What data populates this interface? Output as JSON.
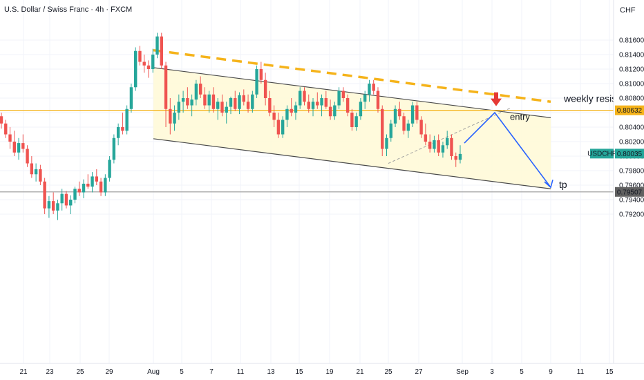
{
  "header": {
    "title": "U.S. Dollar / Swiss Franc · 4h · FXCM",
    "currency": "CHF"
  },
  "colors": {
    "up": "#26a69a",
    "down": "#ef5350",
    "channel_fill": "#fff9d6",
    "trendline": "#f5b31a",
    "resistance": "#f5b31a",
    "tp_line": "#9e9e9e",
    "projection": "#2962ff",
    "arrow": "#e53935",
    "price_tag": "#26a69a"
  },
  "annotations": {
    "resistance_label": "weekly resist",
    "entry_label": "entry",
    "tp_label": "tp"
  },
  "price_tags": {
    "resistance": "0.80632",
    "current_symbol": "USDCHF",
    "current": "0.80035",
    "tp": "0.79507"
  },
  "chart_data": {
    "type": "candlestick",
    "symbol": "USDCHF",
    "timeframe": "4h",
    "ylim": [
      0.791,
      0.8175
    ],
    "y_ticks": [
      0.816,
      0.814,
      0.812,
      0.81,
      0.808,
      0.806,
      0.804,
      0.802,
      0.8,
      0.798,
      0.796,
      0.794,
      0.792
    ],
    "x_ticks": [
      "21",
      "23",
      "25",
      "29",
      "Aug",
      "5",
      "7",
      "11",
      "13",
      "15",
      "19",
      "21",
      "25",
      "27",
      "Sep",
      "3",
      "5",
      "9",
      "11",
      "15"
    ],
    "levels": {
      "weekly_resistance": 0.80632,
      "take_profit": 0.79507,
      "last_price": 0.80035
    },
    "channel": {
      "upper": [
        [
          "Aug 1",
          0.8122
        ],
        [
          "Sep 9",
          0.8053
        ]
      ],
      "lower": [
        [
          "Aug 1",
          0.8024
        ],
        [
          "Sep 9",
          0.7955
        ]
      ]
    },
    "trendline": [
      [
        "Aug 1",
        0.8146
      ],
      [
        "Sep 9",
        0.8075
      ]
    ],
    "projection": [
      [
        "Aug 29",
        0.8018
      ],
      [
        "Sep 3",
        0.806
      ],
      [
        "Sep 9",
        0.7957
      ]
    ],
    "series": [
      {
        "ohlc": [
          [
            0.8055,
            0.806,
            0.8038,
            0.8045
          ],
          [
            0.8045,
            0.805,
            0.8025,
            0.803
          ],
          [
            0.803,
            0.804,
            0.801,
            0.802
          ],
          [
            0.802,
            0.8035,
            0.8,
            0.8005
          ],
          [
            0.8005,
            0.8025,
            0.7995,
            0.8018
          ],
          [
            0.8018,
            0.803,
            0.8005,
            0.801
          ],
          [
            0.801,
            0.8015,
            0.7985,
            0.799
          ],
          [
            0.799,
            0.8,
            0.797,
            0.7975
          ],
          [
            0.7975,
            0.799,
            0.7965,
            0.7982
          ],
          [
            0.7982,
            0.7988,
            0.796,
            0.7965
          ],
          [
            0.7965,
            0.797,
            0.792,
            0.7928
          ],
          [
            0.7928,
            0.7945,
            0.7915,
            0.7938
          ],
          [
            0.7938,
            0.795,
            0.792,
            0.7925
          ],
          [
            0.7925,
            0.794,
            0.7912,
            0.7935
          ],
          [
            0.7935,
            0.7955,
            0.7925,
            0.7948
          ],
          [
            0.7948,
            0.7952,
            0.7928,
            0.7932
          ],
          [
            0.7932,
            0.7946,
            0.792,
            0.794
          ],
          [
            0.794,
            0.7958,
            0.7935,
            0.7955
          ],
          [
            0.7955,
            0.7965,
            0.7945,
            0.795
          ],
          [
            0.795,
            0.7968,
            0.7942,
            0.7962
          ],
          [
            0.7962,
            0.7975,
            0.7955,
            0.7958
          ],
          [
            0.7958,
            0.7978,
            0.795,
            0.7972
          ],
          [
            0.7972,
            0.7982,
            0.796,
            0.7965
          ],
          [
            0.7965,
            0.797,
            0.7945,
            0.795
          ],
          [
            0.795,
            0.7975,
            0.7945,
            0.797
          ],
          [
            0.797,
            0.8,
            0.7965,
            0.7995
          ],
          [
            0.7995,
            0.803,
            0.799,
            0.8025
          ],
          [
            0.8025,
            0.8045,
            0.8015,
            0.804
          ],
          [
            0.804,
            0.806,
            0.803,
            0.8035
          ],
          [
            0.8035,
            0.807,
            0.803,
            0.8065
          ],
          [
            0.8065,
            0.81,
            0.806,
            0.8095
          ],
          [
            0.8095,
            0.815,
            0.809,
            0.8145
          ],
          [
            0.8145,
            0.8152,
            0.8125,
            0.813
          ],
          [
            0.813,
            0.814,
            0.8115,
            0.8125
          ],
          [
            0.8125,
            0.8132,
            0.8108,
            0.812
          ],
          [
            0.812,
            0.8148,
            0.8115,
            0.814
          ],
          [
            0.814,
            0.817,
            0.8135,
            0.8165
          ],
          [
            0.8165,
            0.817,
            0.812,
            0.8125
          ],
          [
            0.8125,
            0.813,
            0.804,
            0.8065
          ],
          [
            0.8065,
            0.808,
            0.803,
            0.8045
          ],
          [
            0.8045,
            0.807,
            0.8035,
            0.806
          ],
          [
            0.806,
            0.8085,
            0.805,
            0.8075
          ],
          [
            0.8075,
            0.809,
            0.806,
            0.808
          ],
          [
            0.808,
            0.8095,
            0.8065,
            0.807
          ],
          [
            0.807,
            0.8085,
            0.8055,
            0.8078
          ],
          [
            0.8078,
            0.8105,
            0.807,
            0.81
          ],
          [
            0.81,
            0.811,
            0.808,
            0.8085
          ],
          [
            0.8085,
            0.8095,
            0.8065,
            0.807
          ],
          [
            0.807,
            0.809,
            0.806,
            0.8085
          ],
          [
            0.8085,
            0.8095,
            0.806,
            0.8065
          ],
          [
            0.8065,
            0.808,
            0.805,
            0.8075
          ],
          [
            0.8075,
            0.8085,
            0.8055,
            0.806
          ],
          [
            0.806,
            0.8075,
            0.8045,
            0.8068
          ],
          [
            0.8068,
            0.8082,
            0.8058,
            0.808
          ],
          [
            0.808,
            0.809,
            0.8062,
            0.8065
          ],
          [
            0.8065,
            0.8088,
            0.8058,
            0.8084
          ],
          [
            0.8084,
            0.8092,
            0.807,
            0.8075
          ],
          [
            0.8075,
            0.8085,
            0.806,
            0.8065
          ],
          [
            0.8065,
            0.809,
            0.806,
            0.8085
          ],
          [
            0.8085,
            0.8125,
            0.808,
            0.812
          ],
          [
            0.812,
            0.813,
            0.81,
            0.8105
          ],
          [
            0.8105,
            0.8115,
            0.807,
            0.808
          ],
          [
            0.808,
            0.809,
            0.8055,
            0.806
          ],
          [
            0.806,
            0.807,
            0.804,
            0.805
          ],
          [
            0.805,
            0.806,
            0.8025,
            0.803
          ],
          [
            0.803,
            0.8055,
            0.8025,
            0.805
          ],
          [
            0.805,
            0.807,
            0.804,
            0.8065
          ],
          [
            0.8065,
            0.808,
            0.8055,
            0.806
          ],
          [
            0.806,
            0.8075,
            0.805,
            0.807
          ],
          [
            0.807,
            0.8095,
            0.8065,
            0.809
          ],
          [
            0.809,
            0.8095,
            0.807,
            0.8075
          ],
          [
            0.8075,
            0.8085,
            0.806,
            0.8065
          ],
          [
            0.8065,
            0.808,
            0.8055,
            0.8075
          ],
          [
            0.8075,
            0.8088,
            0.8065,
            0.807
          ],
          [
            0.807,
            0.8085,
            0.8055,
            0.808
          ],
          [
            0.808,
            0.809,
            0.8065,
            0.8068
          ],
          [
            0.8068,
            0.8078,
            0.805,
            0.8055
          ],
          [
            0.8055,
            0.8075,
            0.805,
            0.807
          ],
          [
            0.807,
            0.8095,
            0.8065,
            0.809
          ],
          [
            0.809,
            0.8095,
            0.8075,
            0.808
          ],
          [
            0.808,
            0.8085,
            0.8055,
            0.806
          ],
          [
            0.806,
            0.8065,
            0.8035,
            0.804
          ],
          [
            0.804,
            0.806,
            0.8035,
            0.8055
          ],
          [
            0.8055,
            0.808,
            0.805,
            0.8075
          ],
          [
            0.8075,
            0.809,
            0.8065,
            0.8085
          ],
          [
            0.8085,
            0.8105,
            0.8075,
            0.81
          ],
          [
            0.81,
            0.8105,
            0.8085,
            0.809
          ],
          [
            0.809,
            0.8095,
            0.806,
            0.8065
          ],
          [
            0.8065,
            0.807,
            0.8,
            0.801
          ],
          [
            0.801,
            0.803,
            0.8,
            0.8025
          ],
          [
            0.8025,
            0.805,
            0.802,
            0.8045
          ],
          [
            0.8045,
            0.807,
            0.804,
            0.8065
          ],
          [
            0.8065,
            0.8075,
            0.805,
            0.8055
          ],
          [
            0.8055,
            0.806,
            0.803,
            0.8035
          ],
          [
            0.8035,
            0.805,
            0.8025,
            0.8045
          ],
          [
            0.8045,
            0.8075,
            0.804,
            0.807
          ],
          [
            0.807,
            0.8075,
            0.8045,
            0.805
          ],
          [
            0.805,
            0.8055,
            0.8025,
            0.803
          ],
          [
            0.803,
            0.8045,
            0.8015,
            0.802
          ],
          [
            0.802,
            0.803,
            0.8005,
            0.801
          ],
          [
            0.801,
            0.8028,
            0.8005,
            0.8022
          ],
          [
            0.8022,
            0.803,
            0.8,
            0.8005
          ],
          [
            0.8005,
            0.802,
            0.7998,
            0.8015
          ],
          [
            0.8015,
            0.8035,
            0.801,
            0.8025
          ],
          [
            0.8025,
            0.803,
            0.7995,
            0.8
          ],
          [
            0.8,
            0.8005,
            0.7985,
            0.7995
          ],
          [
            0.7995,
            0.8015,
            0.799,
            0.8003
          ]
        ]
      }
    ]
  }
}
